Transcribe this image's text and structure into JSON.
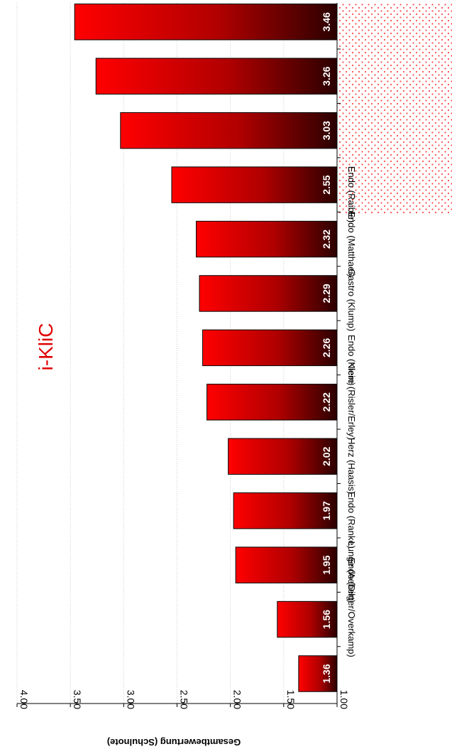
{
  "chart_data": {
    "type": "bar",
    "title": "i-KliC",
    "ylabel": "Gesamtbewertung (Schulnote)",
    "xlabel": "",
    "ylim": [
      1.0,
      4.0
    ],
    "y_ticks": [
      "1.00",
      "1.50",
      "2.00",
      "2.50",
      "3.00",
      "3.50",
      "4.00"
    ],
    "grid": "dotted, vertical",
    "categories": [
      "Endo (Dilger/Overkamp)",
      "Lunge (Aebert)",
      "Endo (Ranke)",
      "Herz (Haasis)",
      "Niere (Risler/Erley)",
      "Endo (Klein)",
      "Gastro (Klump)",
      "Endo (Matthaei)",
      "Endo (Raible)",
      "",
      "",
      "",
      ""
    ],
    "values": [
      1.36,
      1.56,
      1.95,
      1.97,
      2.02,
      2.22,
      2.26,
      2.29,
      2.32,
      2.55,
      3.03,
      3.26,
      3.46
    ],
    "value_labels": [
      "1.36",
      "1.56",
      "1.95",
      "1.97",
      "2.02",
      "2.22",
      "2.26",
      "2.29",
      "2.32",
      "2.55",
      "3.03",
      "3.26",
      "3.46"
    ],
    "label_region_masked_from_index": 9,
    "orientation": "rotated 180 degrees (upside-down)",
    "colors": {
      "bar_light": "#ff0000",
      "bar_dark": "#2a0000",
      "title": "#e00000",
      "mask_dot": "#ff4b4b"
    }
  }
}
